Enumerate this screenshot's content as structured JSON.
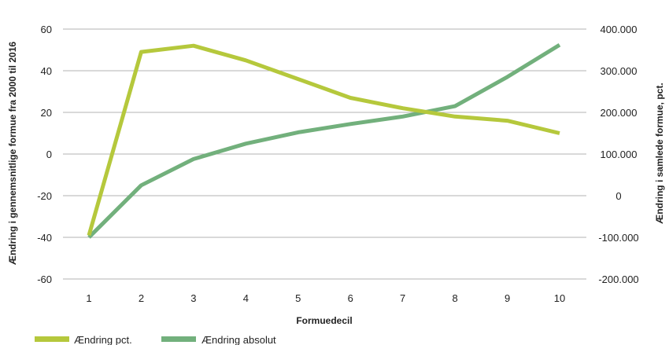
{
  "chart_data": {
    "type": "line",
    "xlabel": "Formuedecil",
    "ylabel_left": "Ændring i gennemsnitlige formue fra 2000 til 2016",
    "ylabel_right": "Ændring i samlede formue, pct.",
    "categories": [
      "1",
      "2",
      "3",
      "4",
      "5",
      "6",
      "7",
      "8",
      "9",
      "10"
    ],
    "y_left": {
      "range": [
        -60,
        60
      ],
      "ticks": [
        "60",
        "40",
        "20",
        "0",
        "-20",
        "-40",
        "-60"
      ]
    },
    "y_right": {
      "range": [
        -200000,
        400000
      ],
      "ticks": [
        "400.000",
        "300.000",
        "200.000",
        "100.000",
        "0",
        "-100.000",
        "-200.000"
      ]
    },
    "grid": "horizontal",
    "legend_position": "bottom-left",
    "series": [
      {
        "name": "Ændring pct.",
        "axis": "left",
        "color": "#b5c83c",
        "values": [
          -39,
          49,
          52,
          45,
          36,
          27,
          22,
          18,
          16,
          10
        ]
      },
      {
        "name": "Ændring absolut",
        "axis": "right",
        "color": "#72b07c",
        "values": [
          -100000,
          25000,
          88000,
          125000,
          152000,
          172000,
          190000,
          215000,
          285000,
          362000
        ]
      }
    ]
  }
}
